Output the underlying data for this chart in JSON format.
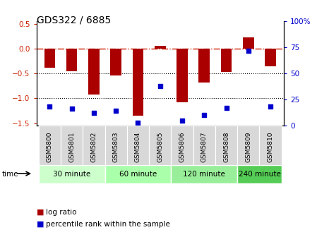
{
  "title": "GDS322 / 6885",
  "samples": [
    "GSM5800",
    "GSM5801",
    "GSM5802",
    "GSM5803",
    "GSM5804",
    "GSM5805",
    "GSM5806",
    "GSM5807",
    "GSM5808",
    "GSM5809",
    "GSM5810"
  ],
  "log_ratio": [
    -0.38,
    -0.45,
    -0.92,
    -0.54,
    -1.35,
    0.05,
    -1.08,
    -0.68,
    -0.47,
    0.22,
    -0.35
  ],
  "percentile": [
    18,
    16,
    12,
    14,
    3,
    38,
    5,
    10,
    17,
    72,
    18
  ],
  "time_groups": [
    {
      "label": "30 minute",
      "start": 0,
      "end": 2,
      "color": "#ccffcc"
    },
    {
      "label": "60 minute",
      "start": 3,
      "end": 5,
      "color": "#aaffaa"
    },
    {
      "label": "120 minute",
      "start": 6,
      "end": 8,
      "color": "#99ee99"
    },
    {
      "label": "240 minute",
      "start": 9,
      "end": 10,
      "color": "#55cc55"
    }
  ],
  "bar_color": "#aa0000",
  "dot_color": "#0000cc",
  "ref_line_color": "#cc2200",
  "grid_color": "#000000",
  "ylim_left": [
    -1.55,
    0.55
  ],
  "ylim_right": [
    0,
    100
  ],
  "yticks_left": [
    -1.5,
    -1.0,
    -0.5,
    0,
    0.5
  ],
  "yticks_right": [
    0,
    25,
    50,
    75,
    100
  ],
  "bar_width": 0.5,
  "legend_labels": [
    "log ratio",
    "percentile rank within the sample"
  ]
}
